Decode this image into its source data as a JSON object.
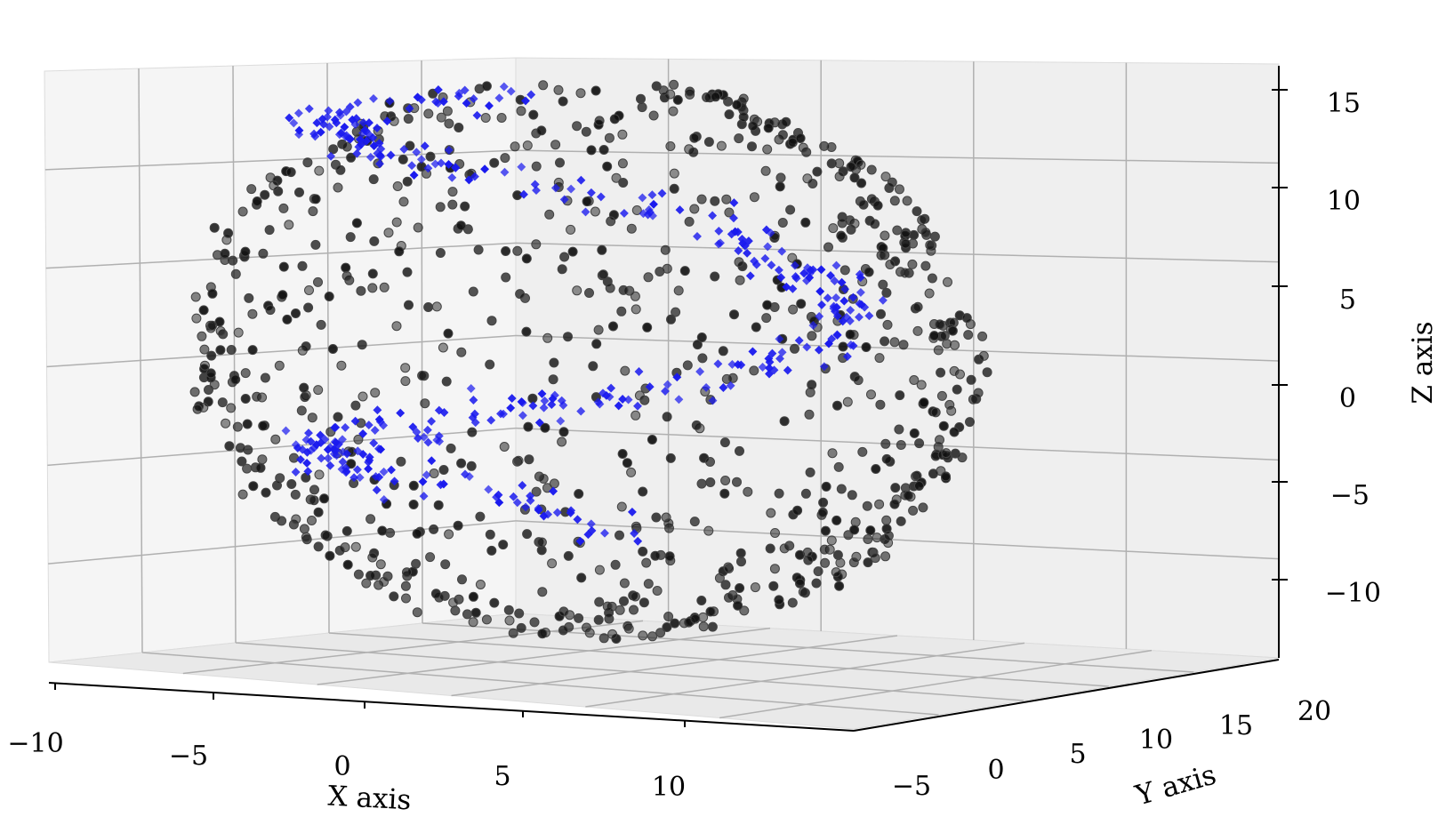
{
  "chart_data": {
    "type": "scatter",
    "projection": "3d",
    "title": "",
    "xlabel": "X axis",
    "ylabel": "Y axis",
    "zlabel": "Z axis",
    "x_ticks": [
      "−10",
      "−5",
      "0",
      "5",
      "10"
    ],
    "y_ticks": [
      "−5",
      "0",
      "5",
      "10",
      "15",
      "20"
    ],
    "z_ticks": [
      "15",
      "10",
      "5",
      "0",
      "−5",
      "−10"
    ],
    "xlim": [
      -10,
      15
    ],
    "ylim": [
      -5,
      20
    ],
    "zlim": [
      -13,
      15
    ],
    "grid": true,
    "legend": "none",
    "colors": {
      "series_a": "#111111",
      "series_b": "#1a1aee",
      "pane": "#f2f2f2",
      "grid": "#b0b0b0"
    },
    "series": [
      {
        "marker": "circle",
        "color": "#111111",
        "approx_point_count": 900,
        "shape": "hollow ring surface"
      },
      {
        "marker": "diamond",
        "color": "#1a1aee",
        "approx_point_count": 380,
        "shape": "inner twisted band"
      }
    ]
  }
}
